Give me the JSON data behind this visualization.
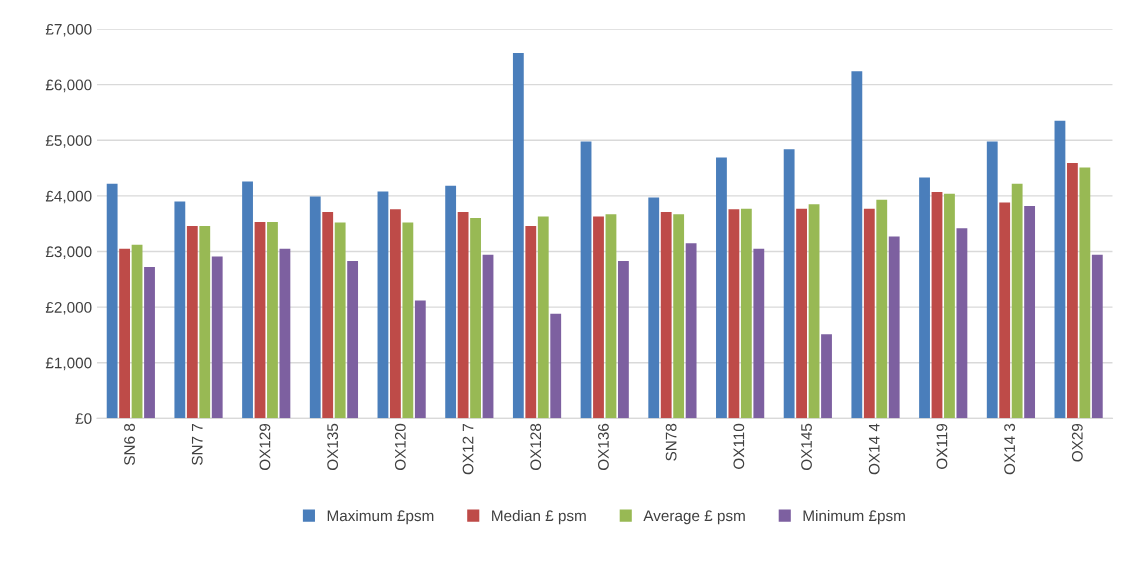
{
  "chart_data": {
    "type": "bar",
    "categories": [
      "SN6 8",
      "SN7 7",
      "OX129",
      "OX135",
      "OX120",
      "OX12 7",
      "OX128",
      "OX136",
      "SN78",
      "OX110",
      "OX145",
      "OX14 4",
      "OX119",
      "OX14 3",
      "OX29"
    ],
    "series": [
      {
        "name": "Maximum £psm",
        "color": "#4a7ebb",
        "values": [
          4220,
          3900,
          4260,
          3990,
          4080,
          4180,
          6570,
          4980,
          3970,
          4690,
          4840,
          6240,
          4330,
          4980,
          5350
        ]
      },
      {
        "name": "Median £ psm",
        "color": "#be4b48",
        "values": [
          3050,
          3460,
          3530,
          3710,
          3760,
          3710,
          3460,
          3630,
          3710,
          3760,
          3770,
          3770,
          4070,
          3880,
          4590
        ]
      },
      {
        "name": "Average £ psm",
        "color": "#98b954",
        "values": [
          3120,
          3460,
          3530,
          3520,
          3520,
          3600,
          3630,
          3670,
          3670,
          3770,
          3850,
          3930,
          4040,
          4220,
          4510
        ]
      },
      {
        "name": "Minimum £psm",
        "color": "#7d60a0",
        "values": [
          2720,
          2910,
          3050,
          2830,
          2120,
          2940,
          1880,
          2830,
          3150,
          3050,
          1510,
          3270,
          3420,
          3820,
          2940
        ]
      }
    ],
    "ylim": [
      0,
      7000
    ],
    "yticks": [
      {
        "value": 0,
        "label": "£0"
      },
      {
        "value": 1000,
        "label": "£1,000"
      },
      {
        "value": 2000,
        "label": "£2,000"
      },
      {
        "value": 3000,
        "label": "£3,000"
      },
      {
        "value": 4000,
        "label": "£4,000"
      },
      {
        "value": 5000,
        "label": "£5,000"
      },
      {
        "value": 6000,
        "label": "£6,000"
      },
      {
        "value": 7000,
        "label": "£7,000"
      }
    ],
    "grid": "y",
    "legend": "bottom"
  }
}
